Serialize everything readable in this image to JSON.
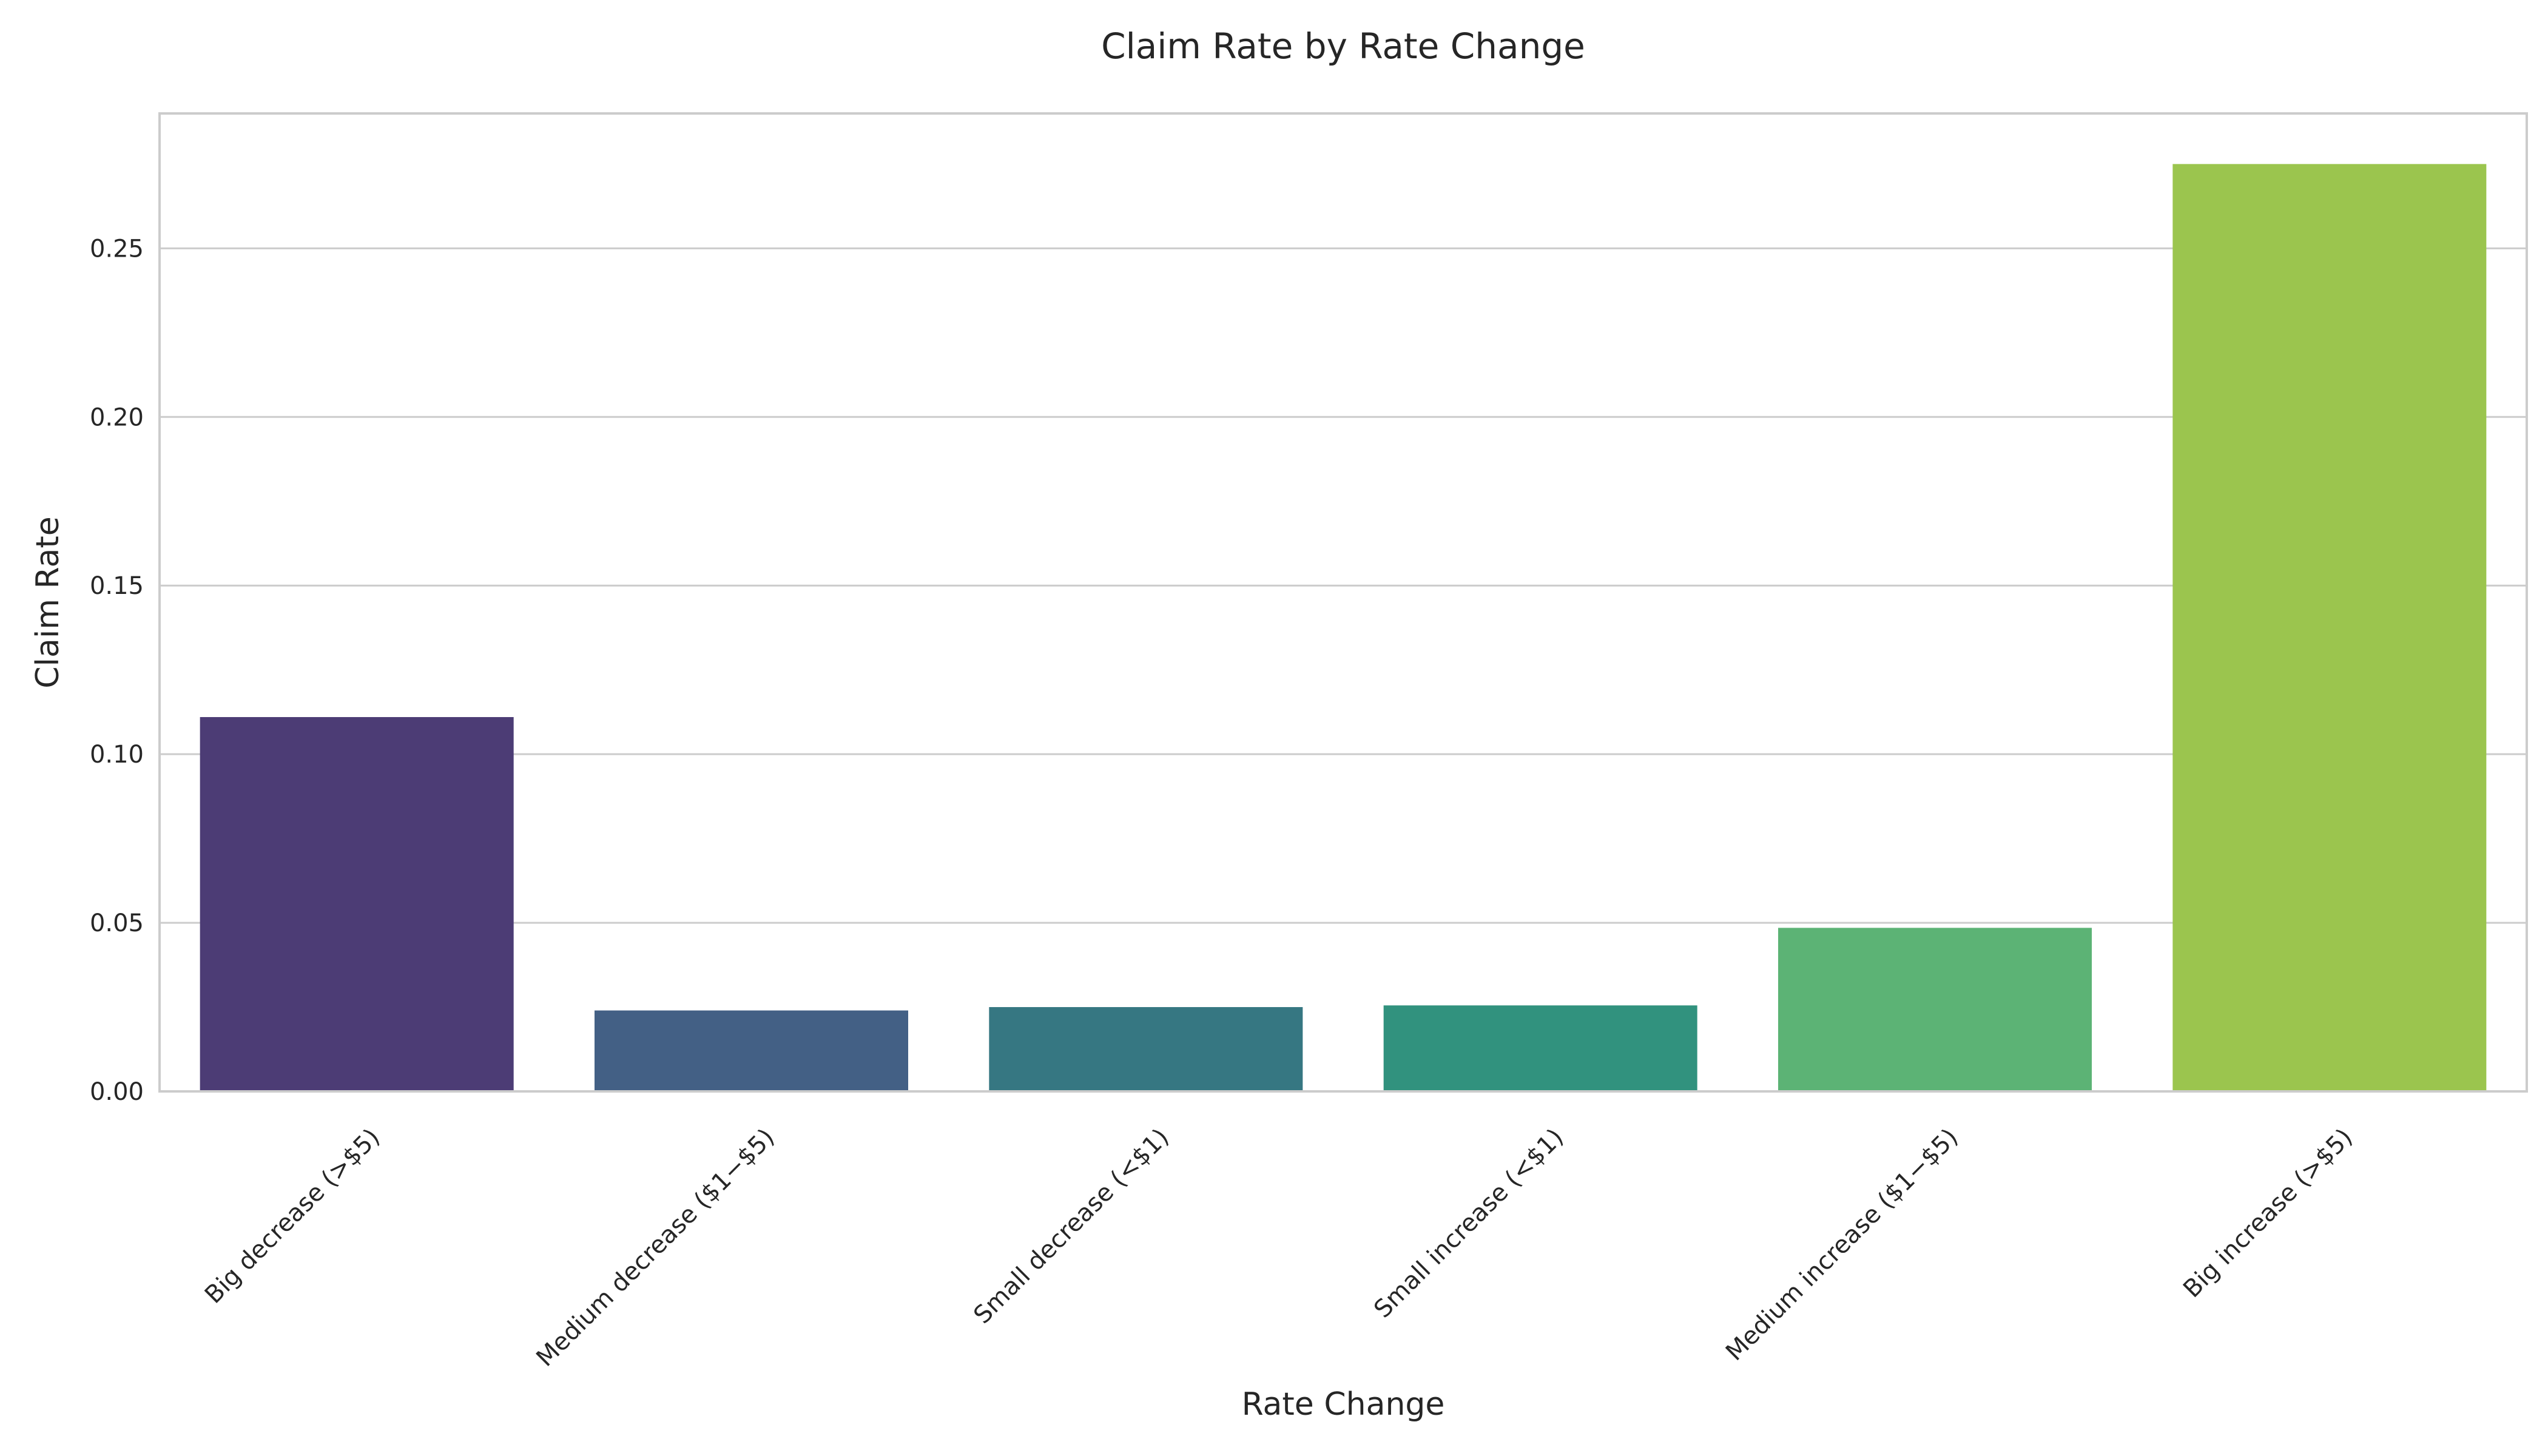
{
  "chart_data": {
    "type": "bar",
    "title": "Claim Rate by Rate Change",
    "xlabel": "Rate Change",
    "ylabel": "Claim Rate",
    "categories": [
      "Big decrease (>$5)",
      "Medium decrease ($1−$5)",
      "Small decrease (<$1)",
      "Small increase (<$1)",
      "Medium increase ($1−$5)",
      "Big increase (>$5)"
    ],
    "values": [
      0.111,
      0.024,
      0.025,
      0.0255,
      0.0485,
      0.275
    ],
    "colors": [
      "#4c3c75",
      "#436085",
      "#367782",
      "#31927e",
      "#5cb375",
      "#9bc54e"
    ],
    "ylim": [
      0,
      0.29
    ],
    "yticks": [
      0.0,
      0.05,
      0.1,
      0.15,
      0.2,
      0.25
    ],
    "ytick_labels": [
      "0.00",
      "0.05",
      "0.10",
      "0.15",
      "0.20",
      "0.25"
    ],
    "grid": "horizontal",
    "legend": "none"
  }
}
